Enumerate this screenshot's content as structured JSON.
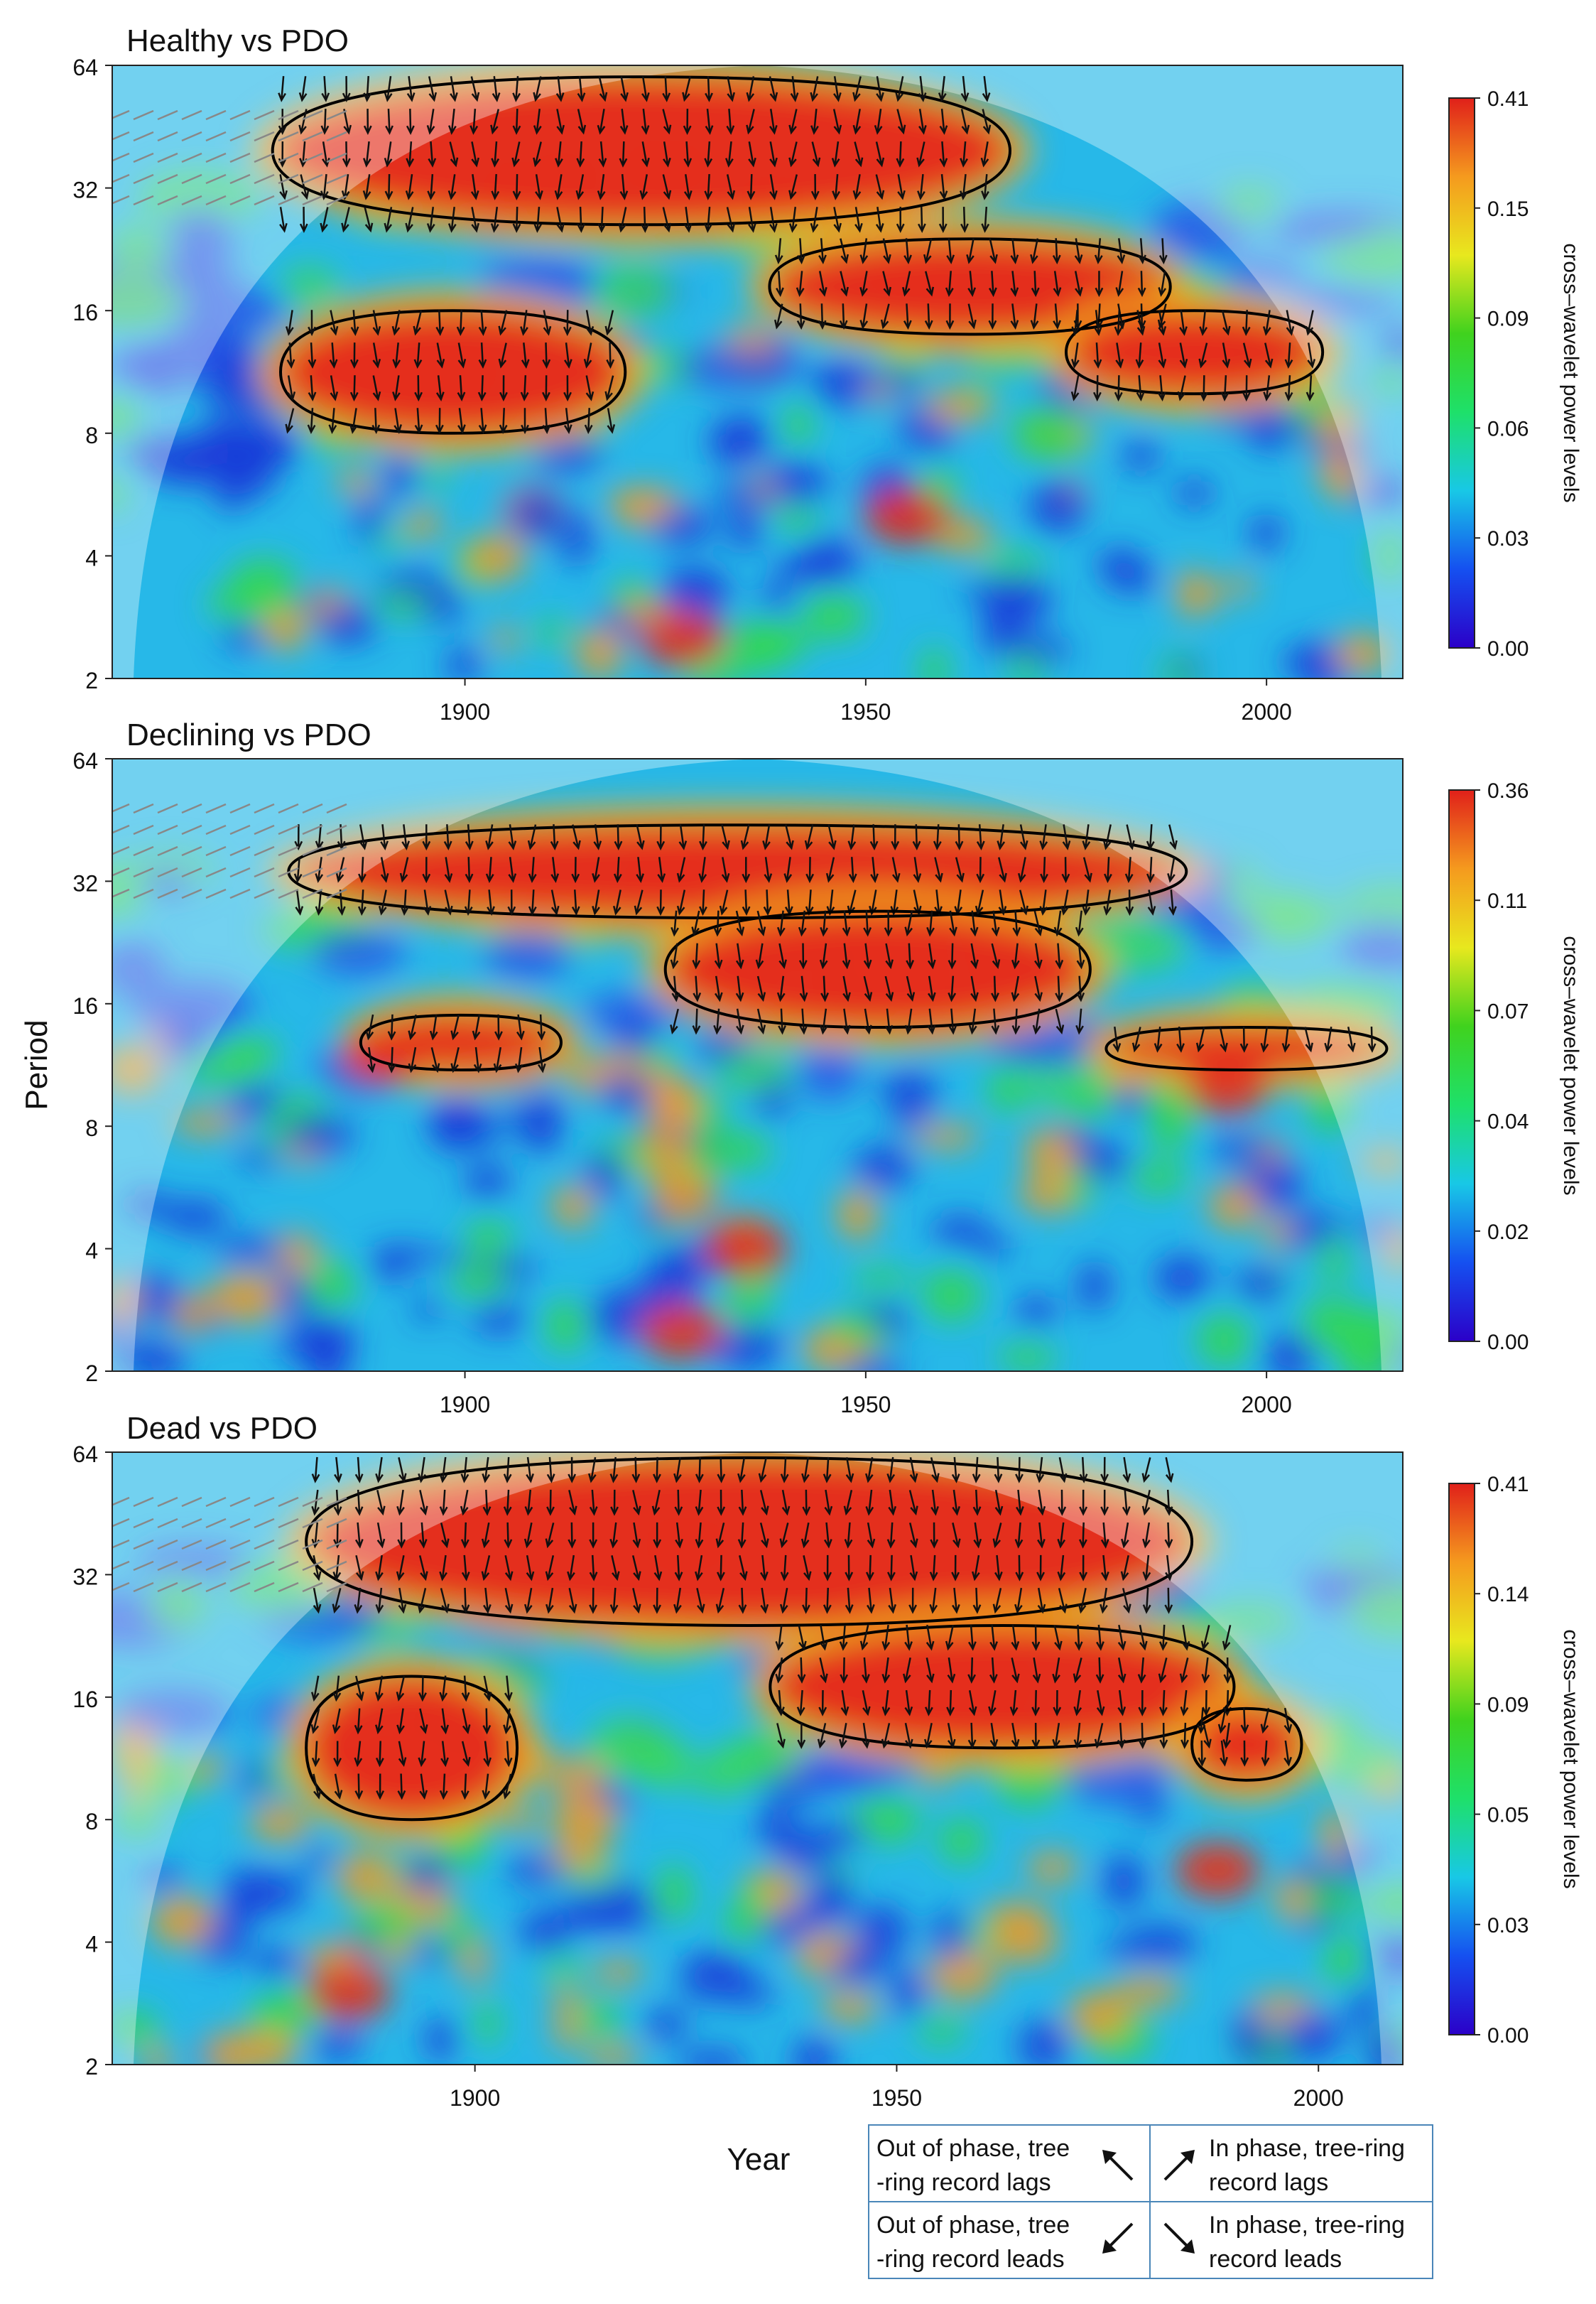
{
  "chart_data": [
    {
      "type": "heatmap",
      "title": "Healthy vs PDO",
      "xlabel": "",
      "ylabel": "",
      "x_ticks": [
        1900,
        1950,
        2000
      ],
      "y_ticks": [
        2,
        4,
        8,
        16,
        32,
        64
      ],
      "xlim": [
        1856,
        2017
      ],
      "ylim": [
        2,
        64
      ],
      "y_scale": "log2",
      "colorbar": {
        "label": "cross–wavelet power levels",
        "ticks": [
          "0.00",
          "0.03",
          "0.06",
          "0.09",
          "0.15",
          "0.41"
        ]
      },
      "significant_regions": [
        {
          "period_band": [
            26,
            60
          ],
          "years": [
            1876,
            1968
          ]
        },
        {
          "period_band": [
            14,
            24
          ],
          "years": [
            1938,
            1988
          ]
        },
        {
          "period_band": [
            8,
            16
          ],
          "years": [
            1877,
            1920
          ]
        },
        {
          "period_band": [
            10,
            16
          ],
          "years": [
            1975,
            2007
          ]
        }
      ],
      "hotspots": [
        {
          "year": 1925,
          "period": 36,
          "power": 0.41
        },
        {
          "year": 1955,
          "period": 20,
          "power": 0.35
        },
        {
          "year": 1892,
          "period": 12,
          "power": 0.33
        },
        {
          "year": 1990,
          "period": 12,
          "power": 0.3
        },
        {
          "year": 1927,
          "period": 2.5,
          "power": 0.22
        },
        {
          "year": 1955,
          "period": 5,
          "power": 0.16
        }
      ]
    },
    {
      "type": "heatmap",
      "title": "Declining vs PDO",
      "xlabel": "",
      "ylabel": "Period",
      "x_ticks": [
        1900,
        1950,
        2000
      ],
      "y_ticks": [
        2,
        4,
        8,
        16,
        32,
        64
      ],
      "xlim": [
        1856,
        2017
      ],
      "ylim": [
        2,
        64
      ],
      "y_scale": "log2",
      "colorbar": {
        "label": "cross–wavelet power levels",
        "ticks": [
          "0.00",
          "0.02",
          "0.04",
          "0.07",
          "0.11",
          "0.36"
        ]
      },
      "significant_regions": [
        {
          "period_band": [
            26,
            44
          ],
          "years": [
            1878,
            1990
          ]
        },
        {
          "period_band": [
            14,
            27
          ],
          "years": [
            1925,
            1978
          ]
        },
        {
          "period_band": [
            11,
            15
          ],
          "years": [
            1887,
            1912
          ]
        },
        {
          "period_band": [
            11,
            14
          ],
          "years": [
            1980,
            2015
          ]
        }
      ],
      "hotspots": [
        {
          "year": 1925,
          "period": 33,
          "power": 0.36
        },
        {
          "year": 1955,
          "period": 20,
          "power": 0.33
        },
        {
          "year": 1890,
          "period": 12,
          "power": 0.3
        },
        {
          "year": 1935,
          "period": 4,
          "power": 0.25
        },
        {
          "year": 1995,
          "period": 10,
          "power": 0.2
        },
        {
          "year": 1927,
          "period": 2.5,
          "power": 0.22
        }
      ]
    },
    {
      "type": "heatmap",
      "title": "Dead vs PDO",
      "xlabel": "Year",
      "ylabel": "",
      "x_ticks": [
        1900,
        1950,
        2000
      ],
      "y_ticks": [
        2,
        4,
        8,
        16,
        32,
        64
      ],
      "xlim": [
        1857,
        2010
      ],
      "ylim": [
        2,
        64
      ],
      "y_scale": "log2",
      "colorbar": {
        "label": "cross–wavelet power levels",
        "ticks": [
          "0.00",
          "0.03",
          "0.05",
          "0.09",
          "0.14",
          "0.41"
        ]
      },
      "significant_regions": [
        {
          "period_band": [
            24,
            62
          ],
          "years": [
            1880,
            1985
          ]
        },
        {
          "period_band": [
            12,
            24
          ],
          "years": [
            1935,
            1990
          ]
        },
        {
          "period_band": [
            8,
            18
          ],
          "years": [
            1880,
            1905
          ]
        },
        {
          "period_band": [
            10,
            15
          ],
          "years": [
            1985,
            1998
          ]
        }
      ],
      "hotspots": [
        {
          "year": 1925,
          "period": 38,
          "power": 0.41
        },
        {
          "year": 1960,
          "period": 18,
          "power": 0.36
        },
        {
          "year": 1890,
          "period": 11,
          "power": 0.32
        },
        {
          "year": 1990,
          "period": 12,
          "power": 0.28
        },
        {
          "year": 1988,
          "period": 6,
          "power": 0.22
        },
        {
          "year": 1885,
          "period": 3,
          "power": 0.2
        }
      ]
    }
  ],
  "legend": [
    {
      "text": "Out of phase, tree\n-ring record lags",
      "arrow": "up-left"
    },
    {
      "text": "In phase, tree-ring\nrecord lags",
      "arrow": "up-right"
    },
    {
      "text": "Out of phase, tree\n-ring record leads",
      "arrow": "down-left"
    },
    {
      "text": "In phase, tree-ring\nrecord leads",
      "arrow": "down-right"
    }
  ],
  "colors": {
    "colorscale": [
      "#2b00c8",
      "#1550f0",
      "#18c8e6",
      "#1ee06a",
      "#40d21e",
      "#e8e81e",
      "#f59a1e",
      "#e0201a"
    ],
    "arrow": "#111111",
    "arrow_outside_coi": "#888888",
    "contour": "#000000"
  }
}
